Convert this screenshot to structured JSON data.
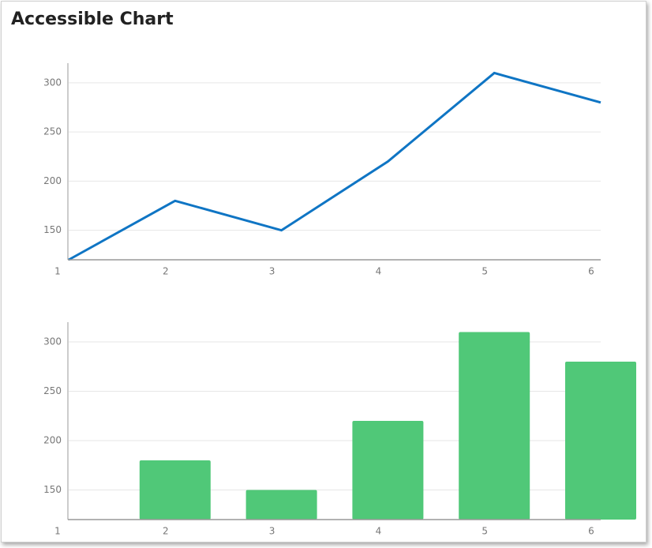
{
  "title": "Accessible Chart",
  "chart_data": [
    {
      "type": "line",
      "x": [
        1,
        2,
        3,
        4,
        5,
        6
      ],
      "values": [
        120,
        180,
        150,
        220,
        310,
        280
      ],
      "color": "#0f75c4",
      "xlim": [
        1,
        6
      ],
      "xticks": [
        1,
        2,
        3,
        4,
        5,
        6
      ],
      "ylim": [
        120,
        320
      ],
      "yticks": [
        150,
        200,
        250,
        300
      ],
      "grid": true
    },
    {
      "type": "bar",
      "x": [
        1,
        2,
        3,
        4,
        5,
        6
      ],
      "values": [
        120,
        180,
        150,
        220,
        310,
        280
      ],
      "color": "#50c878",
      "xlim": [
        1,
        6
      ],
      "xticks": [
        1,
        2,
        3,
        4,
        5,
        6
      ],
      "ylim": [
        120,
        320
      ],
      "yticks": [
        150,
        200,
        250,
        300
      ],
      "grid": true
    }
  ]
}
